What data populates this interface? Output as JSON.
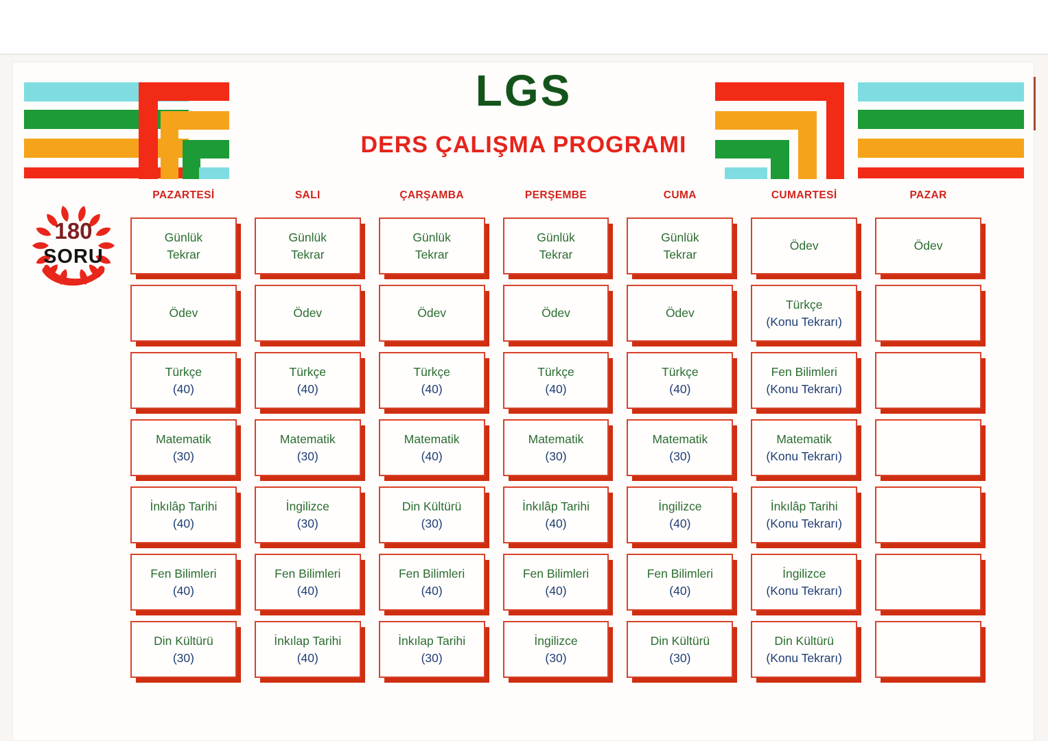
{
  "title": {
    "main": "LGS",
    "subtitle": "DERS ÇALIŞMA PROGRAMI"
  },
  "badge": {
    "number": "180",
    "label": "SORU"
  },
  "colors": {
    "cyan": "#7fdde2",
    "green": "#1d9b36",
    "orange": "#f6a31c",
    "red": "#f22b16",
    "title_green": "#14541b",
    "title_red": "#e5241b",
    "header_red": "#d2231c",
    "cell_border": "#d8422a",
    "cell_shadow": "#cf2e10",
    "subject_green": "#2b6c2f",
    "note_navy": "#203d73",
    "badge_number": "#7e1f22",
    "badge_text": "#161412",
    "wreath_red": "#e8261b"
  },
  "schedule": {
    "days": [
      {
        "name": "PAZARTESİ",
        "slug": "pazartesi",
        "cells": [
          {
            "l1": "Günlük",
            "l2": "Tekrar",
            "num": false
          },
          {
            "l1": "Ödev",
            "l2": "",
            "num": false
          },
          {
            "l1": "Türkçe",
            "l2": "(40)",
            "num": true
          },
          {
            "l1": "Matematik",
            "l2": "(30)",
            "num": true
          },
          {
            "l1": "İnkılâp Tarihi",
            "l2": "(40)",
            "num": true
          },
          {
            "l1": "Fen Bilimleri",
            "l2": "(40)",
            "num": true
          },
          {
            "l1": "Din Kültürü",
            "l2": "(30)",
            "num": true
          }
        ]
      },
      {
        "name": "SALI",
        "slug": "sali",
        "cells": [
          {
            "l1": "Günlük",
            "l2": "Tekrar",
            "num": false
          },
          {
            "l1": "Ödev",
            "l2": "",
            "num": false
          },
          {
            "l1": "Türkçe",
            "l2": "(40)",
            "num": true
          },
          {
            "l1": "Matematik",
            "l2": "(30)",
            "num": true
          },
          {
            "l1": "İngilizce",
            "l2": "(30)",
            "num": true
          },
          {
            "l1": "Fen Bilimleri",
            "l2": "(40)",
            "num": true
          },
          {
            "l1": "İnkılap Tarihi",
            "l2": "(40)",
            "num": true
          }
        ]
      },
      {
        "name": "ÇARŞAMBA",
        "slug": "carsamba",
        "cells": [
          {
            "l1": "Günlük",
            "l2": "Tekrar",
            "num": false
          },
          {
            "l1": "Ödev",
            "l2": "",
            "num": false
          },
          {
            "l1": "Türkçe",
            "l2": "(40)",
            "num": true
          },
          {
            "l1": "Matematik",
            "l2": "(40)",
            "num": true
          },
          {
            "l1": "Din Kültürü",
            "l2": "(30)",
            "num": true
          },
          {
            "l1": "Fen Bilimleri",
            "l2": "(40)",
            "num": true
          },
          {
            "l1": "İnkılap Tarihi",
            "l2": "(30)",
            "num": true
          }
        ]
      },
      {
        "name": "PERŞEMBE",
        "slug": "persembe",
        "cells": [
          {
            "l1": "Günlük",
            "l2": "Tekrar",
            "num": false
          },
          {
            "l1": "Ödev",
            "l2": "",
            "num": false
          },
          {
            "l1": "Türkçe",
            "l2": "(40)",
            "num": true
          },
          {
            "l1": "Matematik",
            "l2": "(30)",
            "num": true
          },
          {
            "l1": "İnkılâp Tarihi",
            "l2": "(40)",
            "num": true
          },
          {
            "l1": "Fen Bilimleri",
            "l2": "(40)",
            "num": true
          },
          {
            "l1": "İngilizce",
            "l2": "(30)",
            "num": true
          }
        ]
      },
      {
        "name": "CUMA",
        "slug": "cuma",
        "cells": [
          {
            "l1": "Günlük",
            "l2": "Tekrar",
            "num": false
          },
          {
            "l1": "Ödev",
            "l2": "",
            "num": false
          },
          {
            "l1": "Türkçe",
            "l2": "(40)",
            "num": true
          },
          {
            "l1": "Matematik",
            "l2": "(30)",
            "num": true
          },
          {
            "l1": "İngilizce",
            "l2": "(40)",
            "num": true
          },
          {
            "l1": "Fen Bilimleri",
            "l2": "(40)",
            "num": true
          },
          {
            "l1": "Din Kültürü",
            "l2": "(30)",
            "num": true
          }
        ]
      },
      {
        "name": "CUMARTESİ",
        "slug": "cumartesi",
        "cells": [
          {
            "l1": "Ödev",
            "l2": "",
            "num": false
          },
          {
            "l1": "Türkçe",
            "l2": "(Konu Tekrarı)",
            "num": true
          },
          {
            "l1": "Fen Bilimleri",
            "l2": "(Konu Tekrarı)",
            "num": true
          },
          {
            "l1": "Matematik",
            "l2": "(Konu Tekrarı)",
            "num": true
          },
          {
            "l1": "İnkılâp Tarihi",
            "l2": "(Konu Tekrarı)",
            "num": true
          },
          {
            "l1": "İngilizce",
            "l2": "(Konu Tekrarı)",
            "num": true
          },
          {
            "l1": "Din Kültürü",
            "l2": "(Konu Tekrarı)",
            "num": true
          }
        ]
      },
      {
        "name": "PAZAR",
        "slug": "pazar",
        "cells": [
          {
            "l1": "Ödev",
            "l2": "",
            "num": false
          },
          {
            "l1": "",
            "l2": "",
            "num": false
          },
          {
            "l1": "",
            "l2": "",
            "num": false
          },
          {
            "l1": "",
            "l2": "",
            "num": false
          },
          {
            "l1": "",
            "l2": "",
            "num": false
          },
          {
            "l1": "",
            "l2": "",
            "num": false
          },
          {
            "l1": "",
            "l2": "",
            "num": false
          }
        ]
      }
    ]
  }
}
